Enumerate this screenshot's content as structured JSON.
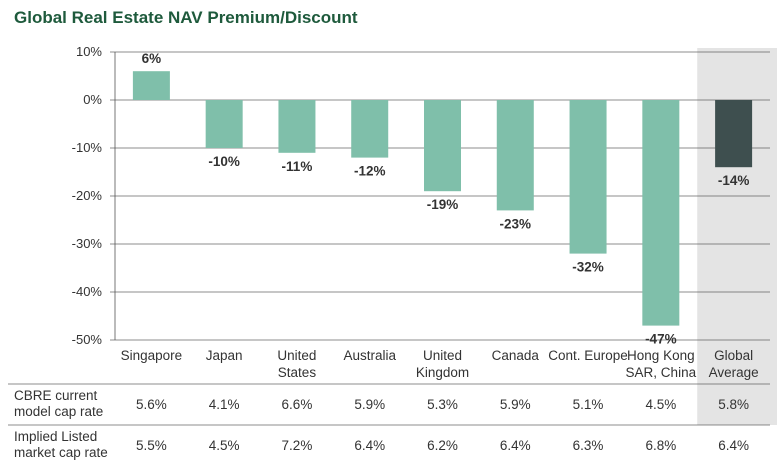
{
  "title": "Global Real Estate NAV Premium/Discount",
  "colors": {
    "bar": "#7fbfaa",
    "highlight_bar": "#3e4f4f",
    "highlight_bg": "#e4e4e4",
    "axis": "#555555",
    "grid": "#666666",
    "title": "#1e5a3c"
  },
  "chart_data": {
    "type": "bar",
    "title": "Global Real Estate NAV Premium/Discount",
    "xlabel": "",
    "ylabel": "",
    "ylim": [
      -50,
      10
    ],
    "yticks": [
      "10%",
      "0%",
      "-10%",
      "-20%",
      "-30%",
      "-40%",
      "-50%"
    ],
    "ytick_values": [
      10,
      0,
      -10,
      -20,
      -30,
      -40,
      -50
    ],
    "grid": true,
    "categories": [
      [
        "Singapore"
      ],
      [
        "Japan"
      ],
      [
        "United",
        "States"
      ],
      [
        "Australia"
      ],
      [
        "United",
        "Kingdom"
      ],
      [
        "Canada"
      ],
      [
        "Cont. Europe"
      ],
      [
        "Hong Kong",
        "SAR, China"
      ],
      [
        "Global",
        "Average"
      ]
    ],
    "values": [
      6,
      -10,
      -11,
      -12,
      -19,
      -23,
      -32,
      -47,
      -14
    ],
    "data_labels": [
      "6%",
      "-10%",
      "-11%",
      "-12%",
      "-19%",
      "-23%",
      "-32%",
      "-47%",
      "-14%"
    ],
    "highlight_index": 8
  },
  "table": {
    "rows": [
      {
        "label": [
          "CBRE current",
          "model cap rate"
        ],
        "values": [
          "5.6%",
          "4.1%",
          "6.6%",
          "5.9%",
          "5.3%",
          "5.9%",
          "5.1%",
          "4.5%",
          "5.8%"
        ]
      },
      {
        "label": [
          "Implied Listed",
          "market cap rate"
        ],
        "values": [
          "5.5%",
          "4.5%",
          "7.2%",
          "6.4%",
          "6.2%",
          "6.4%",
          "6.3%",
          "6.8%",
          "6.4%"
        ]
      }
    ]
  }
}
